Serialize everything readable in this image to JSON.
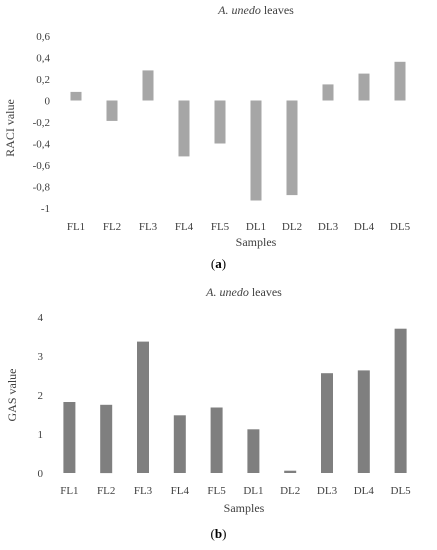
{
  "charts": [
    {
      "id": "a",
      "title_italic": "A. unedo",
      "title_rest": " leaves",
      "ylabel": "RACI value",
      "xlabel": "Samples",
      "caption": "(a)",
      "caption_letter": "a"
    },
    {
      "id": "b",
      "title_italic": "A. unedo",
      "title_rest": " leaves",
      "ylabel": "GAS value",
      "xlabel": "Samples",
      "caption": "(b)",
      "caption_letter": "b"
    }
  ],
  "colors": {
    "bar_a": "#a6a6a6",
    "bar_b": "#7f7f7f",
    "text": "#404040"
  },
  "chart_data": [
    {
      "type": "bar",
      "title": "A. unedo leaves",
      "xlabel": "Samples",
      "ylabel": "RACI value",
      "categories": [
        "FL1",
        "FL2",
        "FL3",
        "FL4",
        "FL5",
        "DL1",
        "DL2",
        "DL3",
        "DL4",
        "DL5"
      ],
      "values": [
        0.08,
        -0.19,
        0.28,
        -0.52,
        -0.4,
        -0.93,
        -0.88,
        0.15,
        0.25,
        0.36
      ],
      "ylim": [
        -1,
        0.6
      ],
      "yticks": [
        "0,6",
        "0,4",
        "0,2",
        "0",
        "-0,2",
        "-0,4",
        "-0,6",
        "-0,8",
        "-1"
      ],
      "grid": false,
      "legend": "none"
    },
    {
      "type": "bar",
      "title": "A. unedo leaves",
      "xlabel": "Samples",
      "ylabel": "GAS value",
      "categories": [
        "FL1",
        "FL2",
        "FL3",
        "FL4",
        "FL5",
        "DL1",
        "DL2",
        "DL3",
        "DL4",
        "DL5"
      ],
      "values": [
        1.82,
        1.75,
        3.37,
        1.48,
        1.68,
        1.12,
        0.06,
        2.56,
        2.63,
        3.7
      ],
      "ylim": [
        0,
        4
      ],
      "yticks": [
        "4",
        "3",
        "2",
        "1",
        "0"
      ],
      "grid": false,
      "legend": "none"
    }
  ]
}
